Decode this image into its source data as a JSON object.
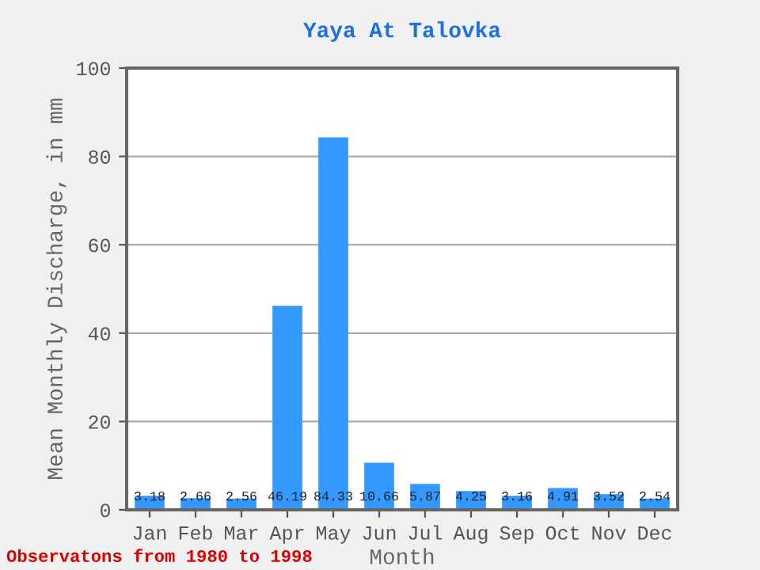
{
  "chart_data": {
    "type": "bar",
    "title": "Yaya At Talovka",
    "xlabel": "Month",
    "ylabel": "Mean Monthly Discharge, in mm",
    "categories": [
      "Jan",
      "Feb",
      "Mar",
      "Apr",
      "May",
      "Jun",
      "Jul",
      "Aug",
      "Sep",
      "Oct",
      "Nov",
      "Dec"
    ],
    "values": [
      3.18,
      2.66,
      2.56,
      46.19,
      84.33,
      10.66,
      5.87,
      4.25,
      3.16,
      4.91,
      3.52,
      2.54
    ],
    "color": "#3399ff",
    "ylim": [
      0,
      100
    ],
    "yticks": [
      0,
      20,
      40,
      60,
      80,
      100
    ],
    "grid": "y",
    "data_labels": true,
    "annotations": [
      "Observatons from 1980 to 1998"
    ]
  }
}
